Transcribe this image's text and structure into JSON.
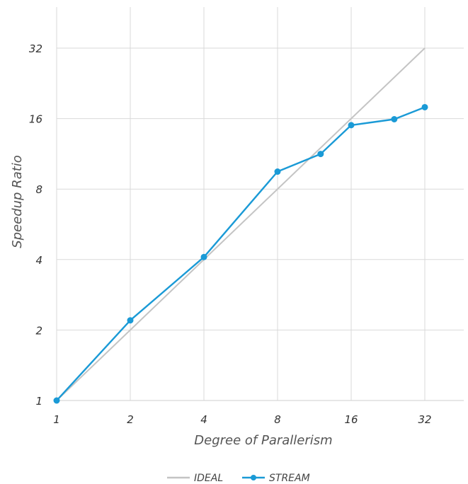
{
  "chart_data": {
    "type": "line",
    "title": "",
    "xlabel": "Degree of Parallerism",
    "ylabel": "Speedup Ratio",
    "x_scale": "log2",
    "y_scale": "log2",
    "xlim": [
      1,
      48
    ],
    "ylim": [
      1,
      45
    ],
    "x_ticks": [
      "1",
      "2",
      "4",
      "8",
      "16",
      "32"
    ],
    "y_ticks": [
      "1",
      "2",
      "4",
      "8",
      "16",
      "32"
    ],
    "grid": true,
    "legend_position": "bottom-center",
    "series": [
      {
        "name": "IDEAL",
        "color": "#c4c4c4",
        "markers": false,
        "points": [
          [
            1,
            1
          ],
          [
            32,
            32
          ]
        ]
      },
      {
        "name": "STREAM",
        "color": "#1a9ad6",
        "markers": true,
        "points": [
          [
            1,
            1
          ],
          [
            2,
            2.2
          ],
          [
            4,
            4.1
          ],
          [
            8,
            9.5
          ],
          [
            12,
            11.3
          ],
          [
            16,
            15.0
          ],
          [
            24,
            15.9
          ],
          [
            32,
            17.9
          ]
        ]
      }
    ]
  }
}
